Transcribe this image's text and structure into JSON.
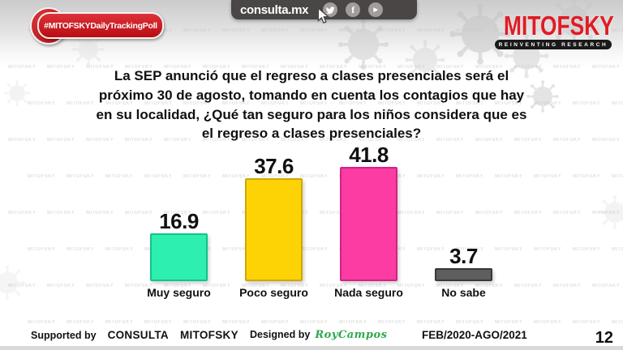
{
  "header": {
    "site": "consulta.mx",
    "social_icons": [
      "twitter",
      "facebook",
      "youtube"
    ],
    "icon_glyphs": {
      "facebook": "f",
      "youtube": "▶"
    },
    "ribbon": "#MITOFSKYDailyTrackingPoll",
    "brand": {
      "name": "MITOFSKY",
      "tagline": "REINVENTING RESEARCH",
      "color": "#e01c24"
    }
  },
  "question": "La SEP anunció que el regreso a clases presenciales será el próximo 30 de agosto, tomando en cuenta los contagios que hay en su localidad, ¿Qué tan seguro para los niños considera que es el regreso a clases presenciales?",
  "chart_data": {
    "type": "bar",
    "categories": [
      "Muy seguro",
      "Poco seguro",
      "Nada seguro",
      "No sabe"
    ],
    "values": [
      16.9,
      37.6,
      41.8,
      3.7
    ],
    "colors": [
      "#2df0b0",
      "#fdd306",
      "#fc3ba3",
      "#5e5e5e"
    ],
    "border_colors": [
      "#14c28a",
      "#cfa800",
      "#cf2480",
      "#383838"
    ],
    "value_labels": [
      "16.9",
      "37.6",
      "41.8",
      "3.7"
    ],
    "ylim": [
      0,
      45
    ],
    "grid": false,
    "legend": false,
    "xlabel": "",
    "ylabel": ""
  },
  "footer": {
    "supported_by_label": "Supported by",
    "brands": [
      "CONSULTA",
      "MITOFSKY"
    ],
    "designed_by_label": "Designed by",
    "designer": "RoyCampos",
    "period": "FEB/2020-AGO/2021",
    "page_number": "12"
  },
  "background": {
    "watermark_text": "MITOFSKY"
  }
}
